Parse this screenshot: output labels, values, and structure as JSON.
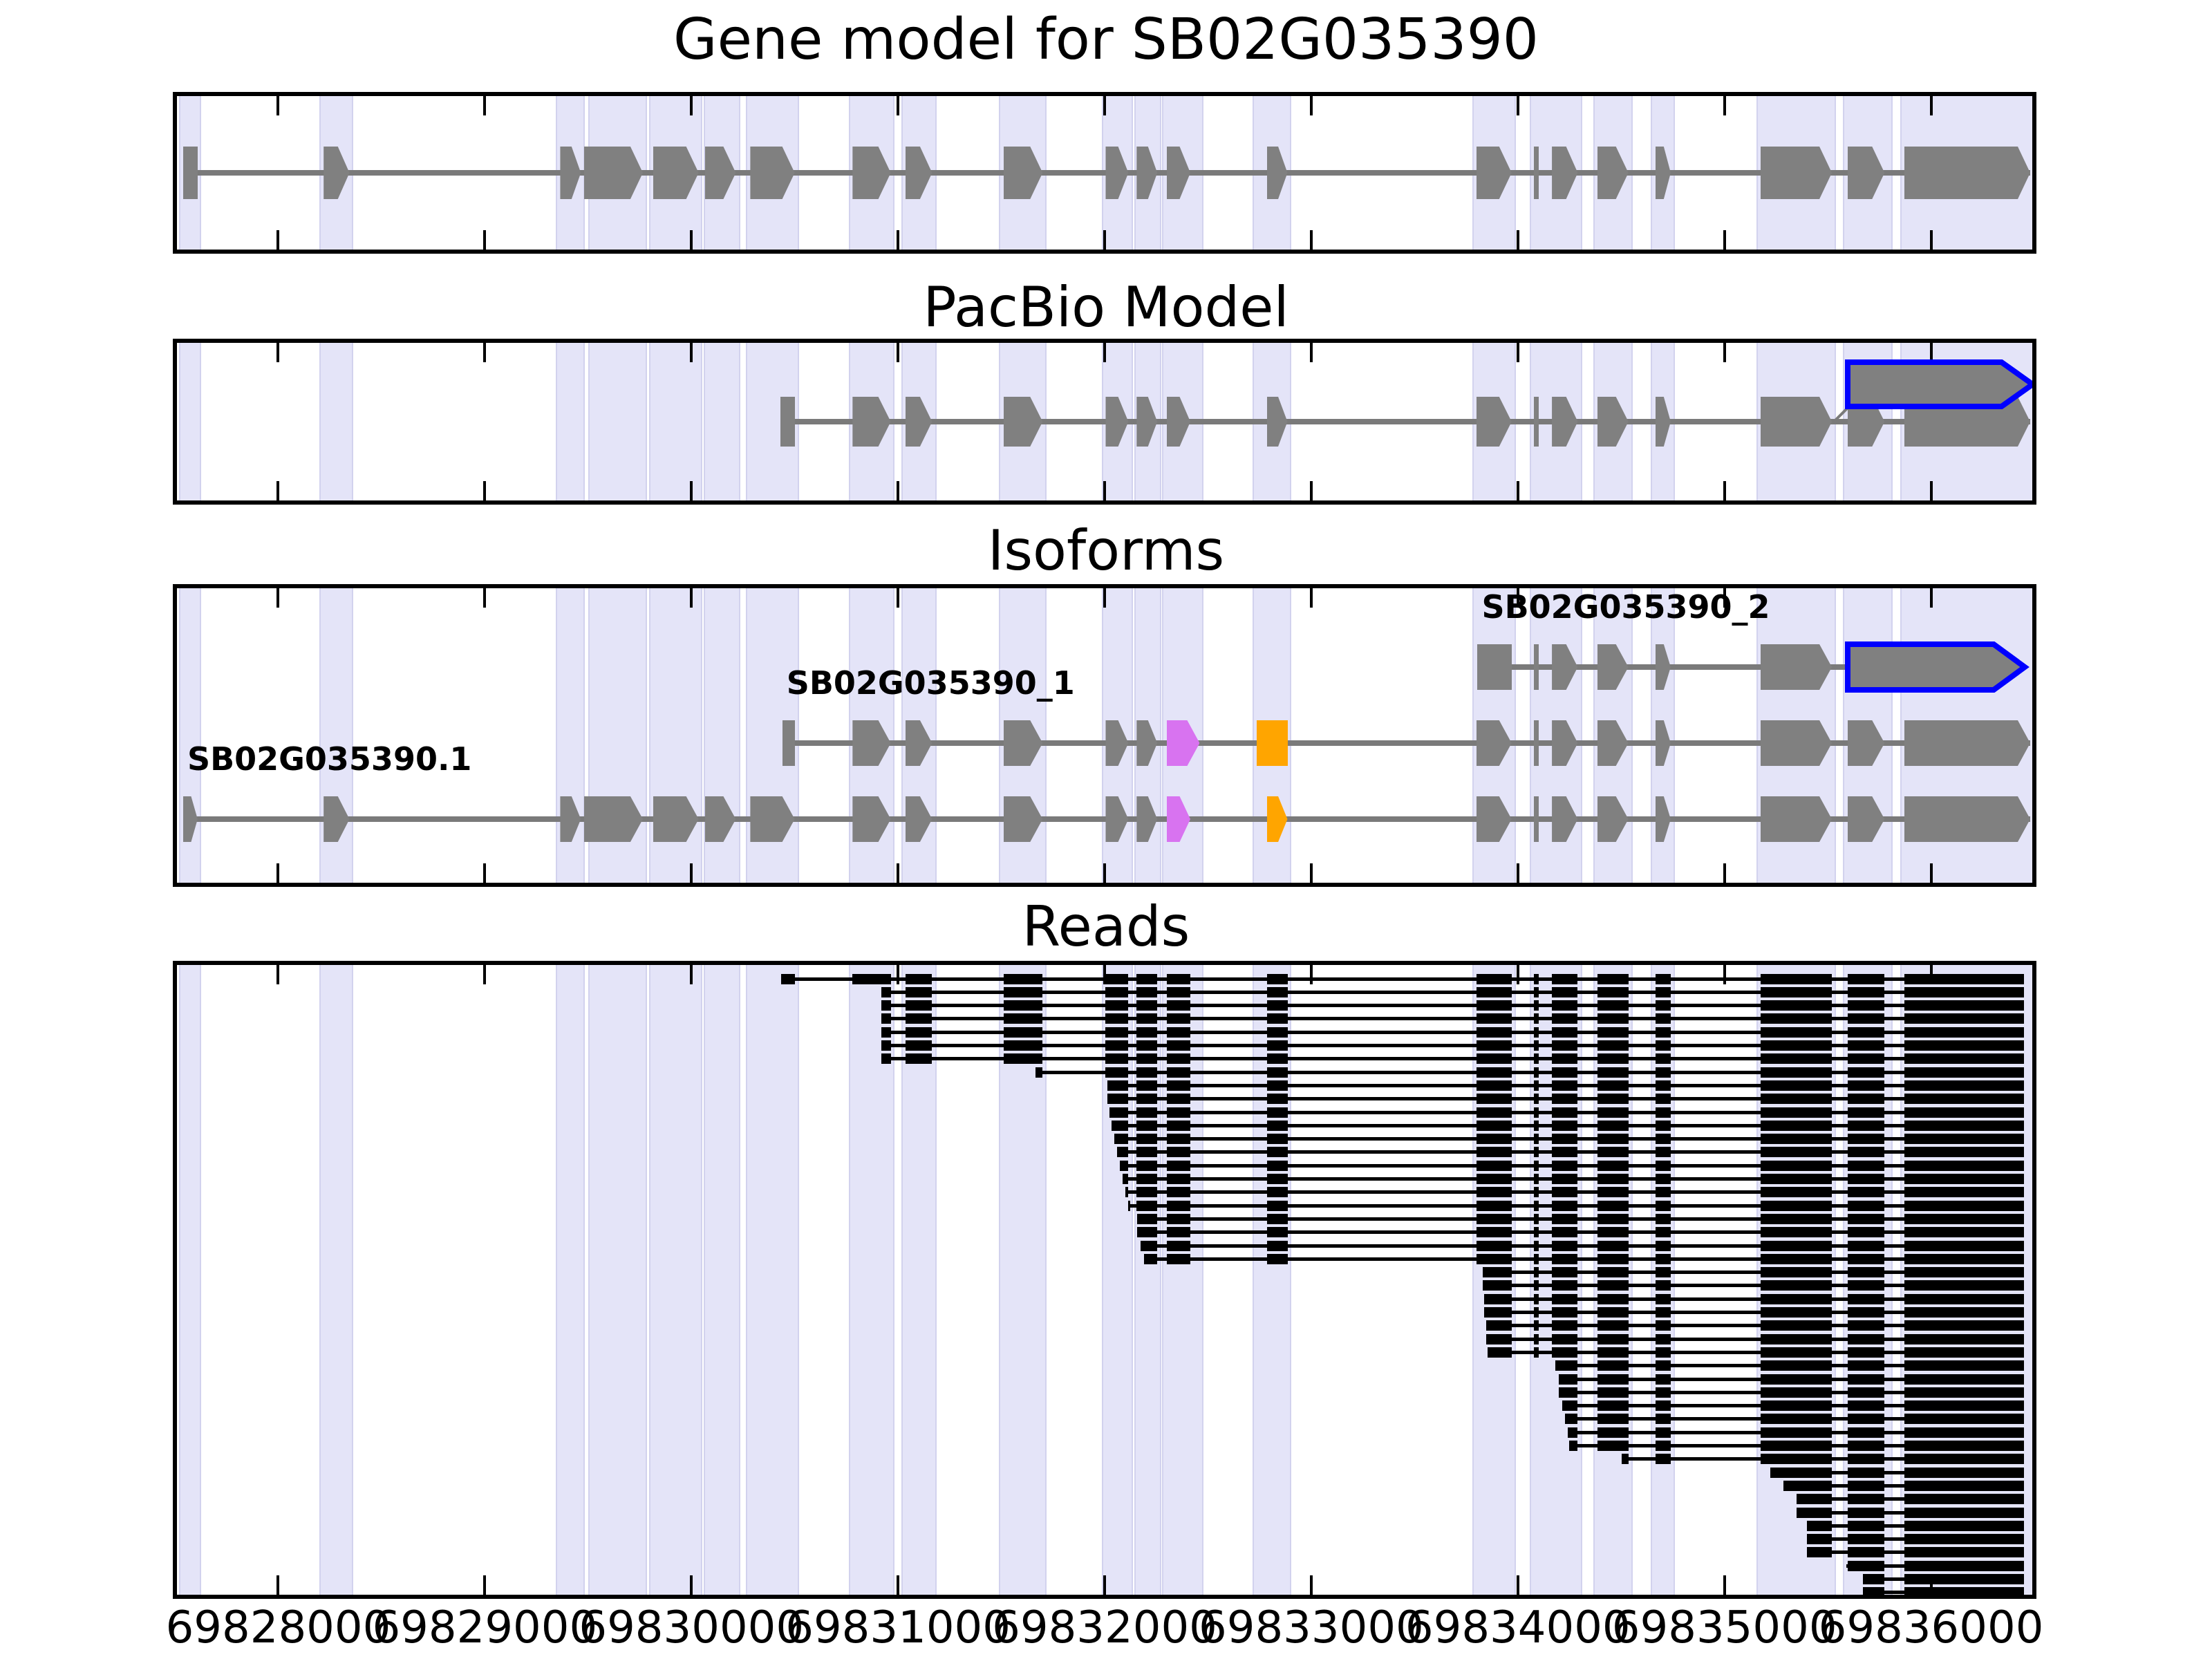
{
  "figure_title": "Gene model for SB02G035390",
  "panel_titles": {
    "pacbio": "PacBio Model",
    "isoforms": "Isoforms",
    "reads": "Reads"
  },
  "x_axis": {
    "min": 69827500,
    "max": 69836500,
    "ticks": [
      69828000,
      69829000,
      69830000,
      69831000,
      69832000,
      69833000,
      69834000,
      69835000,
      69836000
    ],
    "tick_labels": [
      "69828000",
      "69829000",
      "69830000",
      "69831000",
      "69832000",
      "69833000",
      "69834000",
      "69835000",
      "69836000"
    ]
  },
  "colors": {
    "exon_gray": "#808080",
    "intron_gray": "#7a7a7a",
    "read_black": "#000000",
    "band_fill": "#E4E4F8",
    "violet": "#D873F0",
    "orange": "#FFA500",
    "blue_outline": "#0000FF"
  },
  "chart_data": {
    "type": "genome-tracks",
    "title": "Gene model for SB02G035390",
    "x_units": "chromosome position (bp)",
    "x_range": [
      69827500,
      69836500
    ],
    "exons_bp": [
      [
        69827540,
        69827610
      ],
      [
        69828220,
        69828345
      ],
      [
        69829365,
        69829465
      ],
      [
        69829480,
        69829765
      ],
      [
        69829815,
        69830035
      ],
      [
        69830065,
        69830215
      ],
      [
        69830285,
        69830500
      ],
      [
        69830780,
        69830965
      ],
      [
        69831035,
        69831165
      ],
      [
        69831510,
        69831700
      ],
      [
        69832005,
        69832115
      ],
      [
        69832155,
        69832255
      ],
      [
        69832300,
        69832415
      ],
      [
        69832785,
        69832885
      ],
      [
        69833800,
        69833970
      ],
      [
        69834078,
        69834100
      ],
      [
        69834165,
        69834290
      ],
      [
        69834385,
        69834535
      ],
      [
        69834665,
        69834740
      ],
      [
        69835175,
        69835520
      ],
      [
        69835595,
        69835775
      ],
      [
        69835870,
        69836480
      ]
    ],
    "highlight_bands_bp": [
      [
        69827520,
        69827627
      ],
      [
        69828199,
        69828363
      ],
      [
        69829343,
        69829484
      ],
      [
        69829501,
        69829785
      ],
      [
        69829795,
        69830053
      ],
      [
        69830060,
        69830237
      ],
      [
        69830264,
        69830521
      ],
      [
        69830762,
        69830983
      ],
      [
        69831017,
        69831187
      ],
      [
        69831488,
        69831719
      ],
      [
        69831987,
        69832137
      ],
      [
        69832144,
        69832274
      ],
      [
        69832278,
        69832479
      ],
      [
        69832716,
        69832903
      ],
      [
        69833780,
        69833991
      ],
      [
        69834058,
        69834312
      ],
      [
        69834366,
        69834556
      ],
      [
        69834643,
        69834760
      ],
      [
        69835155,
        69835540
      ],
      [
        69835573,
        69835814
      ],
      [
        69835851,
        69836500
      ]
    ],
    "tracks": {
      "gene_model": {
        "uses_all_exons": true
      },
      "pacbio": {
        "clip_start": 69830430,
        "blue_feature": {
          "start": 69835595,
          "end": 69836490
        }
      },
      "isoforms": [
        {
          "label": "SB02G035390_2",
          "clip_start": 69833805,
          "last_exon_index": 19,
          "blue_feature": {
            "start": 69835598,
            "end": 69836455
          }
        },
        {
          "label": "SB02G035390_1",
          "clip_start": 69830440,
          "violet_exon": [
            69832300,
            69832460
          ],
          "orange_exon": [
            69832735,
            69832885
          ]
        },
        {
          "label": "SB02G035390.1",
          "clip_start": 69827540,
          "violet_exon": [
            69832300,
            69832415
          ],
          "orange_exon": [
            69832785,
            69832885
          ]
        }
      ],
      "reads": {
        "end_bp": 69836450,
        "starts_bp": [
          69830434,
          69830920,
          69830920,
          69830920,
          69830920,
          69830920,
          69830920,
          69831666,
          69832014,
          69832014,
          69832024,
          69832034,
          69832047,
          69832061,
          69832074,
          69832087,
          69832101,
          69832114,
          69832158,
          69832158,
          69832174,
          69832191,
          69833830,
          69833830,
          69833837,
          69833837,
          69833847,
          69833847,
          69833854,
          69834182,
          69834199,
          69834199,
          69834216,
          69834229,
          69834242,
          69834249,
          69834503,
          69835223,
          69835286,
          69835350,
          69835350,
          69835400,
          69835400,
          69835400,
          69835591,
          69835671,
          69835671
        ]
      }
    }
  }
}
